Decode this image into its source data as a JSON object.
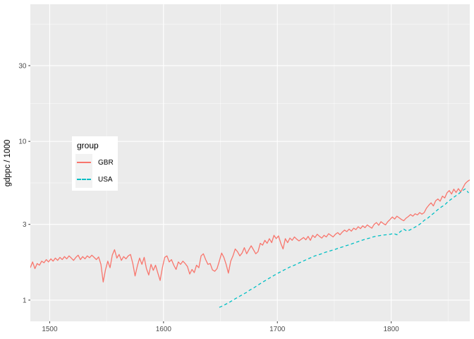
{
  "chart_data": {
    "type": "line",
    "title": "",
    "xlabel": "",
    "ylabel": "gdppc / 1000",
    "x_scale": "linear",
    "y_scale": "log10",
    "xlim": [
      1483,
      1869
    ],
    "ylim": [
      0.735,
      73.1
    ],
    "x_ticks": [
      1500,
      1600,
      1700,
      1800
    ],
    "y_ticks": [
      1,
      3,
      10,
      30
    ],
    "x_minor_gridlines": [
      1550,
      1650,
      1750,
      1850
    ],
    "y_minor_gridlines": [
      1.732,
      5.477,
      17.321,
      54.772
    ],
    "grid": true,
    "legend": {
      "title": "group",
      "position": "inside top-left",
      "entries": [
        {
          "label": "GBR",
          "color": "#F8766D",
          "dash": "solid"
        },
        {
          "label": "USA",
          "color": "#00BFC4",
          "dash": "dashed"
        }
      ]
    },
    "colors": {
      "panel_bg": "#EBEBEB",
      "grid_major": "#FFFFFF",
      "grid_minor": "#FFFFFF",
      "tick_text": "#4D4D4D",
      "tick_mark": "#333333",
      "axis_title": "#000000",
      "legend_bg": "#FFFFFF",
      "legend_key_bg": "#F2F2F2"
    },
    "series": [
      {
        "name": "GBR",
        "color": "#F8766D",
        "linestyle": "solid",
        "points": [
          [
            1483,
            1.6
          ],
          [
            1485,
            1.74
          ],
          [
            1487,
            1.58
          ],
          [
            1489,
            1.7
          ],
          [
            1491,
            1.66
          ],
          [
            1493,
            1.76
          ],
          [
            1495,
            1.72
          ],
          [
            1497,
            1.8
          ],
          [
            1499,
            1.74
          ],
          [
            1501,
            1.82
          ],
          [
            1503,
            1.76
          ],
          [
            1505,
            1.84
          ],
          [
            1507,
            1.78
          ],
          [
            1509,
            1.86
          ],
          [
            1511,
            1.8
          ],
          [
            1513,
            1.88
          ],
          [
            1515,
            1.82
          ],
          [
            1517,
            1.9
          ],
          [
            1519,
            1.84
          ],
          [
            1521,
            1.78
          ],
          [
            1523,
            1.86
          ],
          [
            1525,
            1.92
          ],
          [
            1527,
            1.8
          ],
          [
            1529,
            1.88
          ],
          [
            1531,
            1.82
          ],
          [
            1533,
            1.9
          ],
          [
            1535,
            1.85
          ],
          [
            1537,
            1.92
          ],
          [
            1539,
            1.86
          ],
          [
            1541,
            1.8
          ],
          [
            1543,
            1.87
          ],
          [
            1545,
            1.68
          ],
          [
            1547,
            1.3
          ],
          [
            1549,
            1.55
          ],
          [
            1551,
            1.76
          ],
          [
            1553,
            1.6
          ],
          [
            1555,
            1.92
          ],
          [
            1557,
            2.08
          ],
          [
            1559,
            1.84
          ],
          [
            1561,
            1.94
          ],
          [
            1563,
            1.78
          ],
          [
            1565,
            1.88
          ],
          [
            1567,
            1.82
          ],
          [
            1569,
            1.9
          ],
          [
            1571,
            1.94
          ],
          [
            1573,
            1.7
          ],
          [
            1575,
            1.42
          ],
          [
            1577,
            1.64
          ],
          [
            1579,
            1.84
          ],
          [
            1581,
            1.68
          ],
          [
            1583,
            1.86
          ],
          [
            1585,
            1.58
          ],
          [
            1587,
            1.44
          ],
          [
            1589,
            1.68
          ],
          [
            1591,
            1.54
          ],
          [
            1593,
            1.66
          ],
          [
            1595,
            1.48
          ],
          [
            1597,
            1.33
          ],
          [
            1599,
            1.6
          ],
          [
            1601,
            1.86
          ],
          [
            1603,
            1.9
          ],
          [
            1605,
            1.74
          ],
          [
            1607,
            1.8
          ],
          [
            1609,
            1.66
          ],
          [
            1611,
            1.56
          ],
          [
            1613,
            1.74
          ],
          [
            1615,
            1.68
          ],
          [
            1617,
            1.76
          ],
          [
            1619,
            1.7
          ],
          [
            1621,
            1.63
          ],
          [
            1623,
            1.46
          ],
          [
            1625,
            1.56
          ],
          [
            1627,
            1.49
          ],
          [
            1629,
            1.66
          ],
          [
            1631,
            1.6
          ],
          [
            1633,
            1.9
          ],
          [
            1635,
            1.96
          ],
          [
            1637,
            1.8
          ],
          [
            1639,
            1.68
          ],
          [
            1641,
            1.7
          ],
          [
            1643,
            1.55
          ],
          [
            1645,
            1.52
          ],
          [
            1647,
            1.58
          ],
          [
            1649,
            1.76
          ],
          [
            1651,
            1.98
          ],
          [
            1653,
            1.86
          ],
          [
            1655,
            1.68
          ],
          [
            1657,
            1.48
          ],
          [
            1659,
            1.76
          ],
          [
            1661,
            1.9
          ],
          [
            1663,
            2.1
          ],
          [
            1665,
            2.02
          ],
          [
            1667,
            1.9
          ],
          [
            1669,
            1.98
          ],
          [
            1671,
            2.14
          ],
          [
            1673,
            1.96
          ],
          [
            1675,
            2.08
          ],
          [
            1677,
            2.2
          ],
          [
            1679,
            2.08
          ],
          [
            1681,
            1.96
          ],
          [
            1683,
            2.02
          ],
          [
            1685,
            2.28
          ],
          [
            1687,
            2.22
          ],
          [
            1689,
            2.38
          ],
          [
            1691,
            2.28
          ],
          [
            1693,
            2.44
          ],
          [
            1695,
            2.3
          ],
          [
            1697,
            2.56
          ],
          [
            1699,
            2.44
          ],
          [
            1701,
            2.54
          ],
          [
            1703,
            2.28
          ],
          [
            1705,
            2.1
          ],
          [
            1707,
            2.44
          ],
          [
            1709,
            2.3
          ],
          [
            1711,
            2.46
          ],
          [
            1713,
            2.38
          ],
          [
            1715,
            2.5
          ],
          [
            1717,
            2.42
          ],
          [
            1719,
            2.36
          ],
          [
            1721,
            2.42
          ],
          [
            1723,
            2.48
          ],
          [
            1725,
            2.4
          ],
          [
            1727,
            2.52
          ],
          [
            1729,
            2.38
          ],
          [
            1731,
            2.56
          ],
          [
            1733,
            2.48
          ],
          [
            1735,
            2.6
          ],
          [
            1737,
            2.52
          ],
          [
            1739,
            2.46
          ],
          [
            1741,
            2.56
          ],
          [
            1743,
            2.5
          ],
          [
            1745,
            2.62
          ],
          [
            1747,
            2.56
          ],
          [
            1749,
            2.5
          ],
          [
            1751,
            2.6
          ],
          [
            1753,
            2.66
          ],
          [
            1755,
            2.58
          ],
          [
            1757,
            2.68
          ],
          [
            1759,
            2.76
          ],
          [
            1761,
            2.7
          ],
          [
            1763,
            2.8
          ],
          [
            1765,
            2.72
          ],
          [
            1767,
            2.84
          ],
          [
            1769,
            2.78
          ],
          [
            1771,
            2.9
          ],
          [
            1773,
            2.82
          ],
          [
            1775,
            2.94
          ],
          [
            1777,
            2.86
          ],
          [
            1779,
            2.98
          ],
          [
            1781,
            2.9
          ],
          [
            1783,
            2.84
          ],
          [
            1785,
            3.0
          ],
          [
            1787,
            3.08
          ],
          [
            1789,
            2.96
          ],
          [
            1791,
            3.12
          ],
          [
            1793,
            3.04
          ],
          [
            1795,
            2.98
          ],
          [
            1797,
            3.12
          ],
          [
            1799,
            3.22
          ],
          [
            1801,
            3.34
          ],
          [
            1803,
            3.24
          ],
          [
            1805,
            3.38
          ],
          [
            1807,
            3.3
          ],
          [
            1809,
            3.22
          ],
          [
            1811,
            3.16
          ],
          [
            1813,
            3.28
          ],
          [
            1815,
            3.36
          ],
          [
            1817,
            3.46
          ],
          [
            1819,
            3.38
          ],
          [
            1821,
            3.5
          ],
          [
            1823,
            3.44
          ],
          [
            1825,
            3.56
          ],
          [
            1827,
            3.48
          ],
          [
            1829,
            3.56
          ],
          [
            1831,
            3.8
          ],
          [
            1833,
            3.96
          ],
          [
            1835,
            4.1
          ],
          [
            1837,
            3.92
          ],
          [
            1839,
            4.22
          ],
          [
            1841,
            4.34
          ],
          [
            1843,
            4.2
          ],
          [
            1845,
            4.52
          ],
          [
            1847,
            4.4
          ],
          [
            1849,
            4.74
          ],
          [
            1851,
            4.9
          ],
          [
            1853,
            4.66
          ],
          [
            1855,
            5.0
          ],
          [
            1857,
            4.76
          ],
          [
            1859,
            5.04
          ],
          [
            1861,
            4.8
          ],
          [
            1863,
            5.1
          ],
          [
            1865,
            5.42
          ],
          [
            1867,
            5.6
          ],
          [
            1869,
            5.72
          ]
        ]
      },
      {
        "name": "USA",
        "color": "#00BFC4",
        "linestyle": "dashed",
        "points": [
          [
            1649,
            0.9
          ],
          [
            1652,
            0.92
          ],
          [
            1655,
            0.945
          ],
          [
            1658,
            0.97
          ],
          [
            1661,
            1.0
          ],
          [
            1664,
            1.03
          ],
          [
            1667,
            1.06
          ],
          [
            1670,
            1.09
          ],
          [
            1673,
            1.12
          ],
          [
            1676,
            1.16
          ],
          [
            1679,
            1.19
          ],
          [
            1682,
            1.23
          ],
          [
            1685,
            1.27
          ],
          [
            1688,
            1.31
          ],
          [
            1691,
            1.35
          ],
          [
            1694,
            1.39
          ],
          [
            1697,
            1.43
          ],
          [
            1700,
            1.47
          ],
          [
            1703,
            1.51
          ],
          [
            1706,
            1.55
          ],
          [
            1709,
            1.59
          ],
          [
            1712,
            1.63
          ],
          [
            1715,
            1.66
          ],
          [
            1718,
            1.7
          ],
          [
            1721,
            1.74
          ],
          [
            1724,
            1.78
          ],
          [
            1727,
            1.82
          ],
          [
            1730,
            1.86
          ],
          [
            1733,
            1.9
          ],
          [
            1736,
            1.93
          ],
          [
            1739,
            1.96
          ],
          [
            1742,
            2.0
          ],
          [
            1745,
            2.03
          ],
          [
            1748,
            2.06
          ],
          [
            1751,
            2.09
          ],
          [
            1754,
            2.13
          ],
          [
            1757,
            2.16
          ],
          [
            1760,
            2.2
          ],
          [
            1763,
            2.23
          ],
          [
            1766,
            2.27
          ],
          [
            1769,
            2.31
          ],
          [
            1772,
            2.35
          ],
          [
            1775,
            2.39
          ],
          [
            1778,
            2.43
          ],
          [
            1781,
            2.46
          ],
          [
            1784,
            2.5
          ],
          [
            1787,
            2.53
          ],
          [
            1790,
            2.55
          ],
          [
            1793,
            2.57
          ],
          [
            1796,
            2.58
          ],
          [
            1799,
            2.6
          ],
          [
            1802,
            2.63
          ],
          [
            1805,
            2.58
          ],
          [
            1808,
            2.7
          ],
          [
            1811,
            2.8
          ],
          [
            1814,
            2.72
          ],
          [
            1817,
            2.78
          ],
          [
            1820,
            2.86
          ],
          [
            1823,
            2.94
          ],
          [
            1826,
            3.04
          ],
          [
            1829,
            3.18
          ],
          [
            1832,
            3.28
          ],
          [
            1835,
            3.42
          ],
          [
            1838,
            3.56
          ],
          [
            1841,
            3.72
          ],
          [
            1844,
            3.86
          ],
          [
            1847,
            3.98
          ],
          [
            1850,
            4.18
          ],
          [
            1853,
            4.34
          ],
          [
            1856,
            4.5
          ],
          [
            1859,
            4.66
          ],
          [
            1862,
            4.86
          ],
          [
            1865,
            5.02
          ],
          [
            1868,
            4.74
          ]
        ]
      }
    ]
  }
}
